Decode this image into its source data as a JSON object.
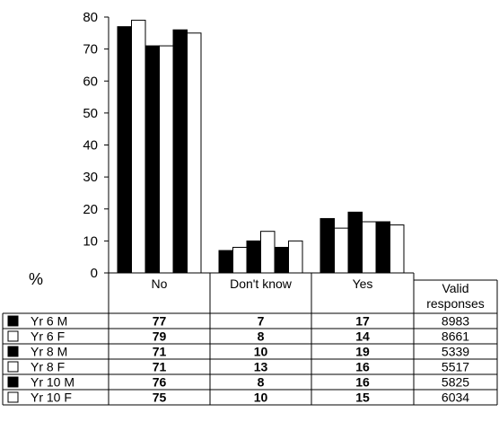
{
  "chart_data": {
    "type": "bar",
    "ylabel": "%",
    "ylim": [
      0,
      80
    ],
    "yticks": [
      0,
      10,
      20,
      30,
      40,
      50,
      60,
      70,
      80
    ],
    "categories": [
      "No",
      "Don't know",
      "Yes"
    ],
    "valid_header": [
      "Valid",
      "responses"
    ],
    "series": [
      {
        "name": "Yr 6 M",
        "fill": "#000000",
        "values": [
          77,
          7,
          17
        ],
        "valid": "8983"
      },
      {
        "name": "Yr 6 F",
        "fill": "#ffffff",
        "values": [
          79,
          8,
          14
        ],
        "valid": "8661"
      },
      {
        "name": "Yr 8 M",
        "fill": "#000000",
        "values": [
          71,
          10,
          19
        ],
        "valid": "5339"
      },
      {
        "name": "Yr 8 F",
        "fill": "#ffffff",
        "values": [
          71,
          13,
          16
        ],
        "valid": "5517"
      },
      {
        "name": "Yr 10 M",
        "fill": "#000000",
        "values": [
          76,
          8,
          16
        ],
        "valid": "5825"
      },
      {
        "name": "Yr 10 F",
        "fill": "#ffffff",
        "values": [
          75,
          10,
          15
        ],
        "valid": "6034"
      }
    ]
  }
}
